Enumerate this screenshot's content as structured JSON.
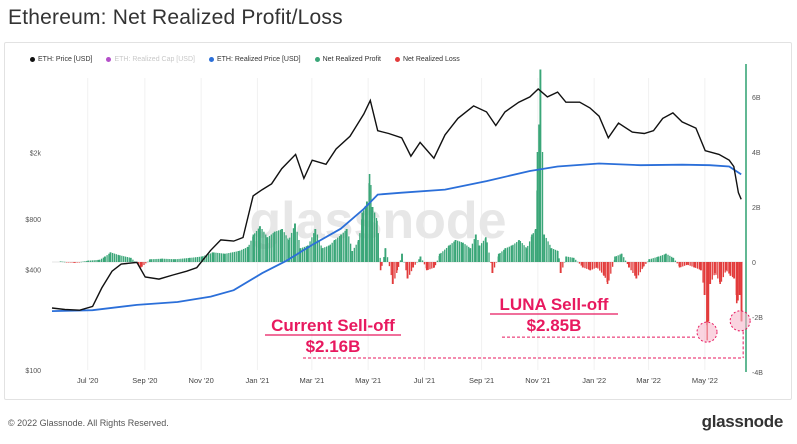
{
  "title": "Ethereum: Net Realized Profit/Loss",
  "footer": {
    "copyright": "© 2022 Glassnode. All Rights Reserved.",
    "brand": "glassnode"
  },
  "watermark": "glassnode",
  "colors": {
    "price": "#111111",
    "realized_cap": "#b44fc9",
    "realized_price": "#2b6fd9",
    "profit": "#3aa678",
    "loss": "#e23b3b",
    "annotation": "#e8195f"
  },
  "legend": [
    {
      "label": "ETH: Price [USD]",
      "color": "#111111",
      "muted": false
    },
    {
      "label": "ETH: Realized Cap [USD]",
      "color": "#b44fc9",
      "muted": true
    },
    {
      "label": "ETH: Realized Price [USD]",
      "color": "#2b6fd9",
      "muted": false
    },
    {
      "label": "Net Realized Profit",
      "color": "#3aa678",
      "muted": false
    },
    {
      "label": "Net Realized Loss",
      "color": "#e23b3b",
      "muted": false
    }
  ],
  "annotations": {
    "current": {
      "title": "Current Sell-off",
      "value": "$2.16B"
    },
    "luna": {
      "title": "LUNA Sell-off",
      "value": "$2.85B"
    }
  },
  "chart_data": {
    "type": "line",
    "x_ticks": [
      "Jul '20",
      "Sep '20",
      "Nov '20",
      "Jan '21",
      "Mar '21",
      "May '21",
      "Jul '21",
      "Sep '21",
      "Nov '21",
      "Jan '22",
      "Mar '22",
      "May '22"
    ],
    "y_left_ticks": [
      "$2k",
      "$800",
      "$400",
      "$100"
    ],
    "y_right_ticks": [
      "6B",
      "4B",
      "2B",
      "0",
      "-2B",
      "-4B"
    ],
    "y_left_scale": "log",
    "x_range": [
      "2020-06-01",
      "2022-06-20"
    ],
    "y_right_range": [
      -4,
      7
    ],
    "price": {
      "name": "ETH: Price [USD]",
      "points": [
        [
          "2020-06-01",
          235
        ],
        [
          "2020-06-15",
          230
        ],
        [
          "2020-07-01",
          228
        ],
        [
          "2020-07-15",
          240
        ],
        [
          "2020-07-25",
          310
        ],
        [
          "2020-08-05",
          390
        ],
        [
          "2020-08-15",
          430
        ],
        [
          "2020-09-01",
          440
        ],
        [
          "2020-09-10",
          360
        ],
        [
          "2020-09-25",
          350
        ],
        [
          "2020-10-10",
          370
        ],
        [
          "2020-10-25",
          390
        ],
        [
          "2020-11-05",
          410
        ],
        [
          "2020-11-20",
          520
        ],
        [
          "2020-12-01",
          600
        ],
        [
          "2020-12-15",
          590
        ],
        [
          "2020-12-25",
          620
        ],
        [
          "2021-01-05",
          1100
        ],
        [
          "2021-01-15",
          1200
        ],
        [
          "2021-01-25",
          1300
        ],
        [
          "2021-02-05",
          1600
        ],
        [
          "2021-02-20",
          1950
        ],
        [
          "2021-03-01",
          1400
        ],
        [
          "2021-03-10",
          1800
        ],
        [
          "2021-03-25",
          1700
        ],
        [
          "2021-04-05",
          2100
        ],
        [
          "2021-04-20",
          2500
        ],
        [
          "2021-05-05",
          3400
        ],
        [
          "2021-05-12",
          4100
        ],
        [
          "2021-05-20",
          2700
        ],
        [
          "2021-06-01",
          2600
        ],
        [
          "2021-06-15",
          2450
        ],
        [
          "2021-06-25",
          1900
        ],
        [
          "2021-07-05",
          2300
        ],
        [
          "2021-07-20",
          1850
        ],
        [
          "2021-08-01",
          2550
        ],
        [
          "2021-08-15",
          3200
        ],
        [
          "2021-09-01",
          3800
        ],
        [
          "2021-09-15",
          3500
        ],
        [
          "2021-09-25",
          2900
        ],
        [
          "2021-10-05",
          3500
        ],
        [
          "2021-10-20",
          4000
        ],
        [
          "2021-11-01",
          4300
        ],
        [
          "2021-11-10",
          4800
        ],
        [
          "2021-11-20",
          4300
        ],
        [
          "2021-12-01",
          4600
        ],
        [
          "2021-12-10",
          4000
        ],
        [
          "2021-12-25",
          4000
        ],
        [
          "2022-01-05",
          3700
        ],
        [
          "2022-01-15",
          3300
        ],
        [
          "2022-01-25",
          2450
        ],
        [
          "2022-02-05",
          3000
        ],
        [
          "2022-02-20",
          2650
        ],
        [
          "2022-03-05",
          2600
        ],
        [
          "2022-03-15",
          2700
        ],
        [
          "2022-03-25",
          3200
        ],
        [
          "2022-04-05",
          3450
        ],
        [
          "2022-04-15",
          3050
        ],
        [
          "2022-04-30",
          2800
        ],
        [
          "2022-05-10",
          2050
        ],
        [
          "2022-05-25",
          1950
        ],
        [
          "2022-06-05",
          1800
        ],
        [
          "2022-06-10",
          1650
        ],
        [
          "2022-06-15",
          1150
        ],
        [
          "2022-06-18",
          1050
        ]
      ]
    },
    "realized_price": {
      "name": "ETH: Realized Price [USD]",
      "points": [
        [
          "2020-06-01",
          225
        ],
        [
          "2020-07-15",
          228
        ],
        [
          "2020-09-01",
          245
        ],
        [
          "2020-10-15",
          255
        ],
        [
          "2020-11-20",
          275
        ],
        [
          "2020-12-15",
          300
        ],
        [
          "2021-01-15",
          380
        ],
        [
          "2021-02-10",
          450
        ],
        [
          "2021-03-10",
          560
        ],
        [
          "2021-04-10",
          700
        ],
        [
          "2021-05-05",
          920
        ],
        [
          "2021-05-20",
          1120
        ],
        [
          "2021-06-15",
          1150
        ],
        [
          "2021-08-01",
          1200
        ],
        [
          "2021-09-15",
          1350
        ],
        [
          "2021-11-01",
          1550
        ],
        [
          "2021-12-01",
          1650
        ],
        [
          "2022-01-15",
          1720
        ],
        [
          "2022-03-01",
          1680
        ],
        [
          "2022-04-15",
          1690
        ],
        [
          "2022-05-15",
          1680
        ],
        [
          "2022-06-05",
          1650
        ],
        [
          "2022-06-18",
          1480
        ]
      ]
    },
    "net_realized": {
      "name": "Net Realized Profit / Loss",
      "unit": "B USD",
      "points": [
        [
          "2020-06-10",
          0.02
        ],
        [
          "2020-06-25",
          -0.03
        ],
        [
          "2020-07-10",
          0.05
        ],
        [
          "2020-07-22",
          0.08
        ],
        [
          "2020-07-28",
          0.2
        ],
        [
          "2020-08-03",
          0.35
        ],
        [
          "2020-08-12",
          0.25
        ],
        [
          "2020-08-25",
          0.15
        ],
        [
          "2020-09-05",
          -0.2
        ],
        [
          "2020-09-15",
          0.1
        ],
        [
          "2020-09-28",
          0.12
        ],
        [
          "2020-10-12",
          0.1
        ],
        [
          "2020-10-28",
          0.15
        ],
        [
          "2020-11-10",
          0.2
        ],
        [
          "2020-11-22",
          0.35
        ],
        [
          "2020-12-05",
          0.3
        ],
        [
          "2020-12-20",
          0.4
        ],
        [
          "2020-12-30",
          0.55
        ],
        [
          "2021-01-05",
          1.0
        ],
        [
          "2021-01-12",
          1.3
        ],
        [
          "2021-01-20",
          0.9
        ],
        [
          "2021-01-28",
          1.1
        ],
        [
          "2021-02-05",
          1.2
        ],
        [
          "2021-02-12",
          0.8
        ],
        [
          "2021-02-19",
          1.4
        ],
        [
          "2021-02-25",
          0.5
        ],
        [
          "2021-03-05",
          0.6
        ],
        [
          "2021-03-13",
          1.2
        ],
        [
          "2021-03-20",
          0.5
        ],
        [
          "2021-03-28",
          0.6
        ],
        [
          "2021-04-03",
          0.8
        ],
        [
          "2021-04-10",
          1.0
        ],
        [
          "2021-04-16",
          1.2
        ],
        [
          "2021-04-22",
          0.4
        ],
        [
          "2021-04-29",
          0.8
        ],
        [
          "2021-05-03",
          1.8
        ],
        [
          "2021-05-08",
          2.2
        ],
        [
          "2021-05-11",
          3.2
        ],
        [
          "2021-05-14",
          2.0
        ],
        [
          "2021-05-19",
          1.5
        ],
        [
          "2021-05-23",
          -0.3
        ],
        [
          "2021-05-28",
          0.5
        ],
        [
          "2021-06-05",
          -0.8
        ],
        [
          "2021-06-10",
          -0.3
        ],
        [
          "2021-06-15",
          0.3
        ],
        [
          "2021-06-21",
          -0.6
        ],
        [
          "2021-06-27",
          -0.2
        ],
        [
          "2021-07-05",
          0.2
        ],
        [
          "2021-07-12",
          -0.3
        ],
        [
          "2021-07-20",
          -0.2
        ],
        [
          "2021-07-26",
          0.3
        ],
        [
          "2021-08-05",
          0.6
        ],
        [
          "2021-08-12",
          0.8
        ],
        [
          "2021-08-20",
          0.7
        ],
        [
          "2021-08-28",
          0.5
        ],
        [
          "2021-09-03",
          1.0
        ],
        [
          "2021-09-07",
          0.6
        ],
        [
          "2021-09-14",
          0.9
        ],
        [
          "2021-09-21",
          -0.4
        ],
        [
          "2021-09-28",
          0.3
        ],
        [
          "2021-10-05",
          0.5
        ],
        [
          "2021-10-12",
          0.6
        ],
        [
          "2021-10-20",
          0.8
        ],
        [
          "2021-10-28",
          0.5
        ],
        [
          "2021-11-03",
          1.0
        ],
        [
          "2021-11-07",
          1.2
        ],
        [
          "2021-11-09",
          4.0
        ],
        [
          "2021-11-12",
          7.0
        ],
        [
          "2021-11-16",
          1.0
        ],
        [
          "2021-11-24",
          0.5
        ],
        [
          "2021-12-01",
          0.4
        ],
        [
          "2021-12-04",
          -0.4
        ],
        [
          "2021-12-10",
          0.2
        ],
        [
          "2021-12-18",
          0.15
        ],
        [
          "2021-12-28",
          -0.2
        ],
        [
          "2022-01-05",
          -0.3
        ],
        [
          "2022-01-12",
          -0.2
        ],
        [
          "2022-01-20",
          -0.5
        ],
        [
          "2022-01-24",
          -0.8
        ],
        [
          "2022-02-01",
          0.2
        ],
        [
          "2022-02-08",
          0.3
        ],
        [
          "2022-02-16",
          -0.2
        ],
        [
          "2022-02-24",
          -0.6
        ],
        [
          "2022-03-03",
          -0.2
        ],
        [
          "2022-03-10",
          0.1
        ],
        [
          "2022-03-20",
          0.2
        ],
        [
          "2022-03-28",
          0.3
        ],
        [
          "2022-04-05",
          0.15
        ],
        [
          "2022-04-12",
          -0.2
        ],
        [
          "2022-04-20",
          -0.1
        ],
        [
          "2022-04-28",
          -0.2
        ],
        [
          "2022-05-05",
          -0.3
        ],
        [
          "2022-05-09",
          -1.2
        ],
        [
          "2022-05-12",
          -2.85
        ],
        [
          "2022-05-15",
          -0.8
        ],
        [
          "2022-05-20",
          -0.4
        ],
        [
          "2022-05-26",
          -0.8
        ],
        [
          "2022-06-01",
          -0.3
        ],
        [
          "2022-06-06",
          -0.5
        ],
        [
          "2022-06-10",
          -0.6
        ],
        [
          "2022-06-13",
          -1.5
        ],
        [
          "2022-06-16",
          -1.2
        ],
        [
          "2022-06-18",
          -2.16
        ]
      ]
    }
  }
}
